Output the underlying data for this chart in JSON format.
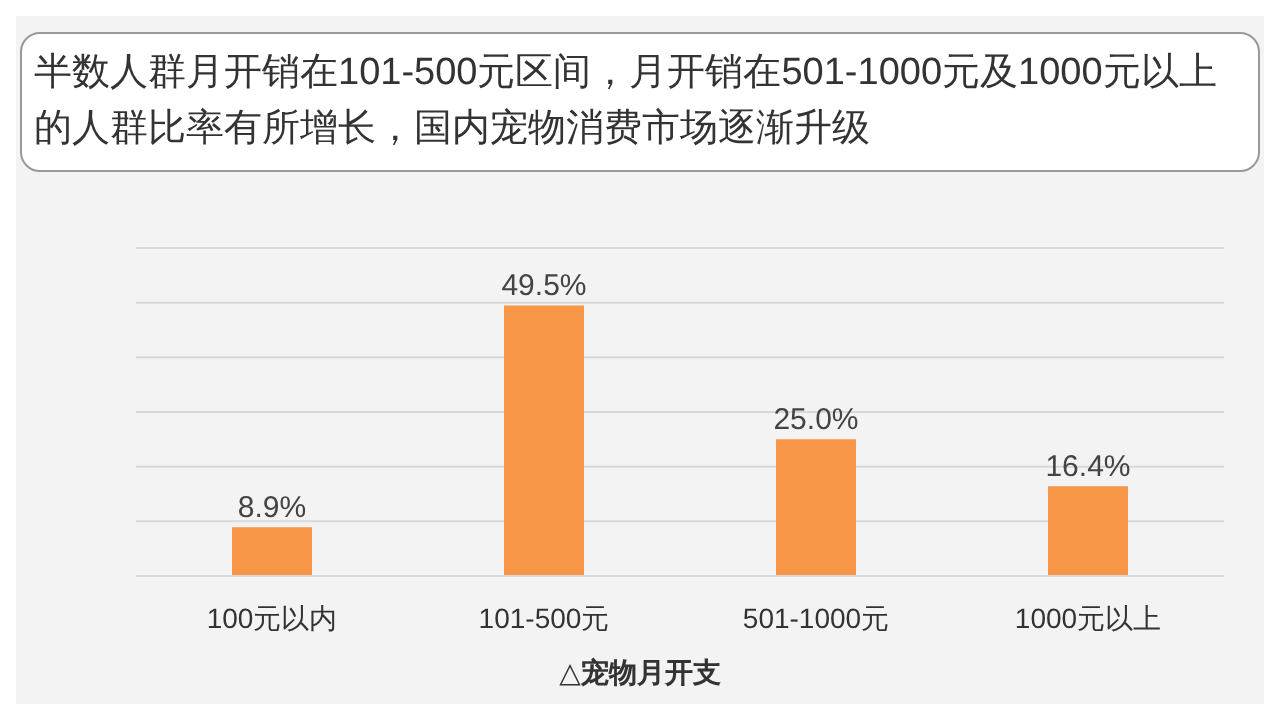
{
  "chart_data": {
    "type": "bar",
    "title": "半数人群月开销在101-500元区间，月开销在501-1000元及1000元以上的人群比率有所增长，国内宠物消费市场逐渐升级",
    "xlabel": "△宠物月开支",
    "categories": [
      "100元以内",
      "101-500元",
      "501-1000元",
      "1000元以上"
    ],
    "values": [
      8.9,
      49.5,
      25.0,
      16.4
    ],
    "color": "#f79646",
    "value_labels": [
      "8.9%",
      "49.5%",
      "25.0%",
      "16.4%"
    ],
    "ylim": [
      0,
      60
    ],
    "yticks": [
      {
        "value": 0,
        "label": null
      },
      {
        "value": 10,
        "label": null
      },
      {
        "value": 20,
        "label": null
      },
      {
        "value": 30,
        "label": null
      },
      {
        "value": 40,
        "label": null
      },
      {
        "value": 50,
        "label": null
      },
      {
        "value": 60,
        "label": null
      }
    ],
    "grid": "y",
    "tick_labels": "x"
  }
}
